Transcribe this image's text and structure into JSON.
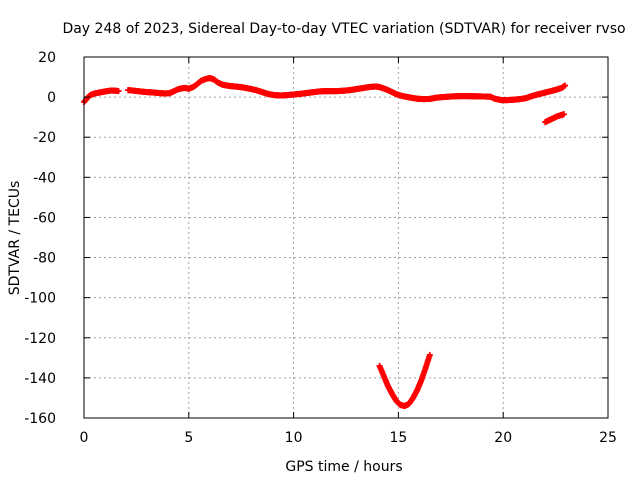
{
  "chart_data": {
    "type": "scatter",
    "title": "Day 248 of 2023, Sidereal Day-to-day VTEC variation (SDTVAR) for receiver rvso",
    "xlabel": "GPS time / hours",
    "ylabel": "SDTVAR / TECUs",
    "xlim": [
      0,
      25
    ],
    "ylim": [
      -160,
      20
    ],
    "xticks": [
      0,
      5,
      10,
      15,
      20,
      25
    ],
    "yticks": [
      -160,
      -140,
      -120,
      -100,
      -80,
      -60,
      -40,
      -20,
      0,
      20
    ],
    "grid": true,
    "marker": "plus",
    "series": [
      {
        "color": "#ff0000",
        "segments": [
          [
            [
              0.0,
              -2.5
            ],
            [
              0.15,
              -0.5
            ],
            [
              0.3,
              1.0
            ],
            [
              0.5,
              1.8
            ],
            [
              0.7,
              2.2
            ],
            [
              0.9,
              2.6
            ],
            [
              1.1,
              3.0
            ],
            [
              1.3,
              3.3
            ],
            [
              1.5,
              3.2
            ],
            [
              1.65,
              3.0
            ]
          ],
          [
            [
              2.1,
              3.5
            ],
            [
              2.4,
              3.2
            ],
            [
              2.7,
              2.8
            ],
            [
              3.0,
              2.5
            ],
            [
              3.3,
              2.3
            ],
            [
              3.6,
              2.0
            ],
            [
              3.9,
              1.8
            ],
            [
              4.1,
              2.0
            ],
            [
              4.3,
              3.0
            ],
            [
              4.5,
              4.0
            ],
            [
              4.8,
              4.6
            ],
            [
              5.0,
              4.2
            ],
            [
              5.2,
              5.0
            ],
            [
              5.4,
              6.5
            ],
            [
              5.6,
              8.2
            ],
            [
              5.8,
              9.0
            ],
            [
              6.0,
              9.5
            ],
            [
              6.2,
              8.8
            ],
            [
              6.4,
              7.2
            ],
            [
              6.6,
              6.2
            ],
            [
              6.8,
              5.8
            ],
            [
              7.0,
              5.5
            ],
            [
              7.3,
              5.2
            ],
            [
              7.6,
              4.8
            ],
            [
              7.9,
              4.2
            ],
            [
              8.2,
              3.5
            ],
            [
              8.5,
              2.5
            ],
            [
              8.8,
              1.5
            ],
            [
              9.1,
              1.0
            ],
            [
              9.4,
              0.8
            ],
            [
              9.7,
              1.0
            ],
            [
              10.0,
              1.3
            ],
            [
              10.3,
              1.6
            ],
            [
              10.6,
              2.0
            ],
            [
              10.9,
              2.4
            ],
            [
              11.2,
              2.8
            ],
            [
              11.5,
              3.0
            ],
            [
              11.8,
              3.0
            ],
            [
              12.1,
              3.0
            ],
            [
              12.4,
              3.2
            ],
            [
              12.7,
              3.5
            ],
            [
              13.0,
              4.0
            ],
            [
              13.3,
              4.5
            ],
            [
              13.6,
              5.0
            ],
            [
              13.9,
              5.3
            ],
            [
              14.1,
              5.0
            ],
            [
              14.3,
              4.3
            ],
            [
              14.5,
              3.5
            ],
            [
              14.7,
              2.5
            ],
            [
              14.9,
              1.5
            ],
            [
              15.1,
              0.8
            ],
            [
              15.3,
              0.3
            ],
            [
              15.6,
              -0.3
            ],
            [
              15.9,
              -0.8
            ],
            [
              16.2,
              -1.0
            ],
            [
              16.5,
              -0.9
            ],
            [
              16.8,
              -0.3
            ],
            [
              17.1,
              0.0
            ],
            [
              17.5,
              0.3
            ],
            [
              17.9,
              0.5
            ],
            [
              18.3,
              0.5
            ],
            [
              18.7,
              0.4
            ],
            [
              19.1,
              0.3
            ],
            [
              19.4,
              0.2
            ],
            [
              19.6,
              -0.8
            ],
            [
              19.9,
              -1.5
            ],
            [
              20.2,
              -1.5
            ],
            [
              20.5,
              -1.3
            ],
            [
              20.8,
              -1.0
            ],
            [
              21.1,
              -0.5
            ],
            [
              21.3,
              0.3
            ],
            [
              21.6,
              1.2
            ],
            [
              21.9,
              2.0
            ],
            [
              22.2,
              2.8
            ],
            [
              22.5,
              3.6
            ],
            [
              22.8,
              4.6
            ],
            [
              22.95,
              5.8
            ]
          ],
          [
            [
              22.0,
              -12.5
            ],
            [
              22.3,
              -11.0
            ],
            [
              22.6,
              -9.5
            ],
            [
              22.9,
              -8.5
            ]
          ],
          [
            [
              14.1,
              -134.0
            ],
            [
              14.3,
              -139.0
            ],
            [
              14.5,
              -144.0
            ],
            [
              14.7,
              -148.0
            ],
            [
              14.9,
              -151.5
            ],
            [
              15.1,
              -153.5
            ],
            [
              15.3,
              -154.0
            ],
            [
              15.5,
              -153.0
            ],
            [
              15.7,
              -150.0
            ],
            [
              15.9,
              -146.0
            ],
            [
              16.1,
              -141.0
            ],
            [
              16.3,
              -135.0
            ],
            [
              16.5,
              -128.5
            ]
          ]
        ]
      }
    ]
  }
}
